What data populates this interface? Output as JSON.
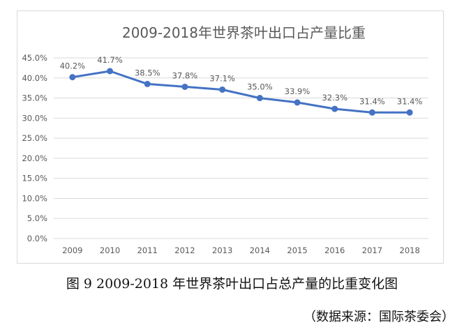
{
  "figure": {
    "caption": "图 9 2009-2018 年世界茶叶出口占总产量的比重变化图",
    "source": "（数据来源：国际茶委会）"
  },
  "colors": {
    "line": "#4472C4",
    "grid": "#d9d9d9",
    "text": "#595959"
  },
  "chart_data": {
    "type": "line",
    "title": "2009-2018年世界茶叶出口占产量比重",
    "xlabel": "",
    "ylabel": "",
    "categories": [
      "2009",
      "2010",
      "2011",
      "2012",
      "2013",
      "2014",
      "2015",
      "2016",
      "2017",
      "2018"
    ],
    "series": [
      {
        "values": [
          40.2,
          41.7,
          38.5,
          37.8,
          37.1,
          35.0,
          33.9,
          32.3,
          31.4,
          31.4
        ]
      }
    ],
    "data_labels": [
      "40.2%",
      "41.7%",
      "38.5%",
      "37.8%",
      "37.1%",
      "35.0%",
      "33.9%",
      "32.3%",
      "31.4%",
      "31.4%"
    ],
    "ylim": [
      0,
      45
    ],
    "yticks": [
      "0.0%",
      "5.0%",
      "10.0%",
      "15.0%",
      "20.0%",
      "25.0%",
      "30.0%",
      "35.0%",
      "40.0%",
      "45.0%"
    ],
    "grid": true,
    "legend": "none"
  }
}
